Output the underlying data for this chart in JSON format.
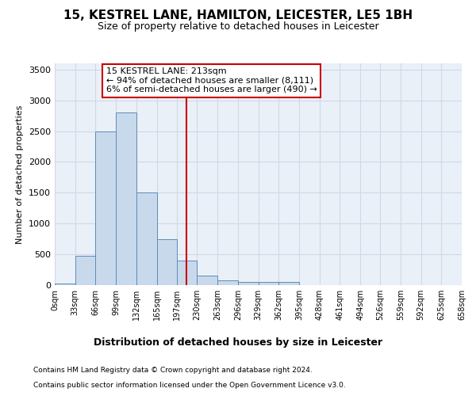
{
  "title1": "15, KESTREL LANE, HAMILTON, LEICESTER, LE5 1BH",
  "title2": "Size of property relative to detached houses in Leicester",
  "xlabel": "Distribution of detached houses by size in Leicester",
  "ylabel": "Number of detached properties",
  "footnote1": "Contains HM Land Registry data © Crown copyright and database right 2024.",
  "footnote2": "Contains public sector information licensed under the Open Government Licence v3.0.",
  "bin_edges": [
    0,
    33,
    66,
    99,
    132,
    165,
    197,
    230,
    263,
    296,
    329,
    362,
    395,
    428,
    461,
    494,
    526,
    559,
    592,
    625,
    658
  ],
  "bar_heights": [
    30,
    475,
    2500,
    2800,
    1500,
    750,
    400,
    150,
    75,
    50,
    50,
    50,
    0,
    0,
    0,
    0,
    0,
    0,
    0,
    0
  ],
  "bar_color": "#c9d9ec",
  "bar_edge_color": "#5b8db8",
  "grid_color": "#d0d8e8",
  "background_color": "#eaf0f8",
  "vline_x": 213,
  "vline_color": "#cc0000",
  "annotation_text": "15 KESTREL LANE: 213sqm\n← 94% of detached houses are smaller (8,111)\n6% of semi-detached houses are larger (490) →",
  "annotation_box_color": "#cc0000",
  "ylim": [
    0,
    3600
  ],
  "yticks": [
    0,
    500,
    1000,
    1500,
    2000,
    2500,
    3000,
    3500
  ],
  "tick_labels": [
    "0sqm",
    "33sqm",
    "66sqm",
    "99sqm",
    "132sqm",
    "165sqm",
    "197sqm",
    "230sqm",
    "263sqm",
    "296sqm",
    "329sqm",
    "362sqm",
    "395sqm",
    "428sqm",
    "461sqm",
    "494sqm",
    "526sqm",
    "559sqm",
    "592sqm",
    "625sqm",
    "658sqm"
  ],
  "title1_fontsize": 11,
  "title2_fontsize": 9,
  "ylabel_fontsize": 8,
  "xlabel_fontsize": 9,
  "ytick_fontsize": 8,
  "xtick_fontsize": 7,
  "footnote_fontsize": 6.5
}
